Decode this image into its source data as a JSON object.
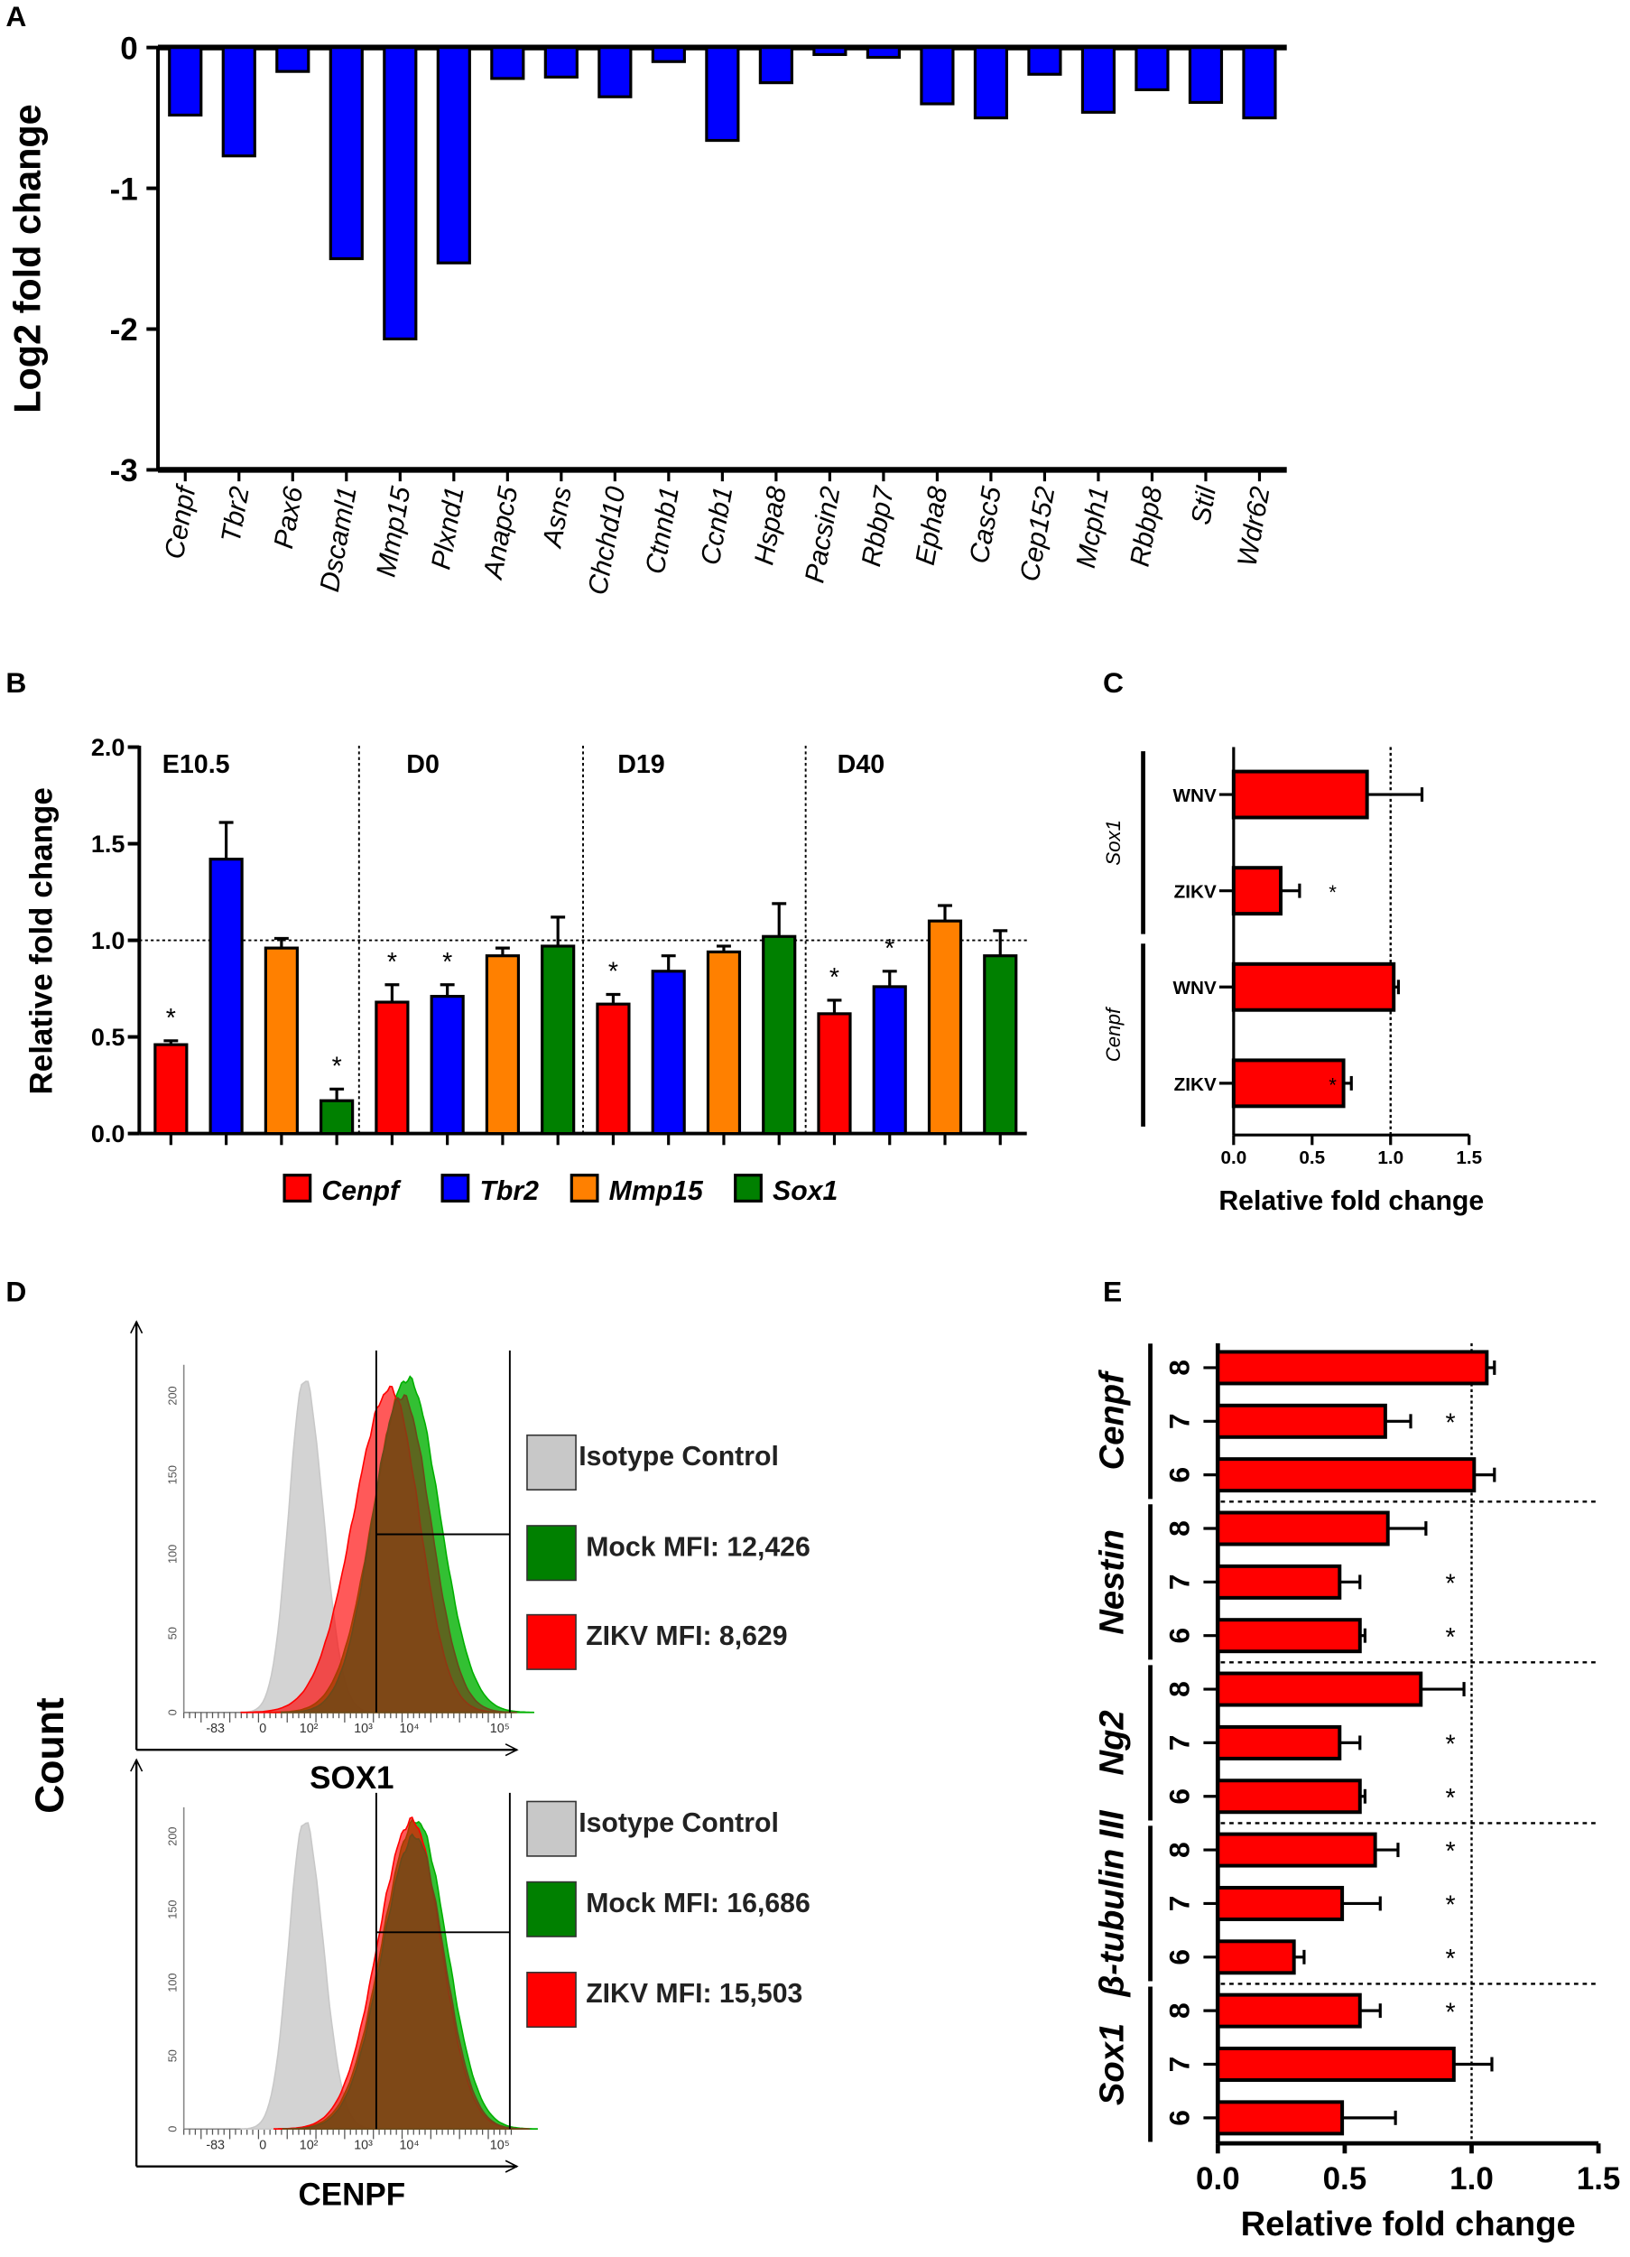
{
  "chart_data": [
    {
      "panel": "A",
      "type": "bar",
      "ylabel": "Log2 fold change",
      "ylim": [
        -3,
        0
      ],
      "yticks": [
        "0",
        "-1",
        "-2",
        "-3"
      ],
      "categories": [
        "Cenpf",
        "Tbr2",
        "Pax6",
        "Dscaml1",
        "Mmp15",
        "Plxnd1",
        "Anapc5",
        "Asns",
        "Chchd10",
        "Ctnnb1",
        "Ccnb1",
        "Hspa8",
        "Pacsin2",
        "Rbbp7",
        "Epha8",
        "Casc5",
        "Cep152",
        "Mcph1",
        "Rbbp8",
        "Stil",
        "Wdr62"
      ],
      "values": [
        -0.48,
        -0.77,
        -0.17,
        -1.5,
        -2.07,
        -1.53,
        -0.22,
        -0.21,
        -0.35,
        -0.1,
        -0.66,
        -0.25,
        -0.05,
        -0.07,
        -0.4,
        -0.5,
        -0.19,
        -0.46,
        -0.3,
        -0.39,
        -0.5
      ],
      "color": "#0000ff"
    },
    {
      "panel": "B",
      "type": "bar",
      "ylabel": "Relative fold change",
      "ylim": [
        0,
        2.0
      ],
      "yticks": [
        "0.0",
        "0.5",
        "1.0",
        "1.5",
        "2.0"
      ],
      "groups": [
        "E10.5",
        "D0",
        "D19",
        "D40"
      ],
      "reference_line": 1.0,
      "series": [
        {
          "name": "Cenpf",
          "color": "#ff0000",
          "values": [
            0.46,
            0.68,
            0.67,
            0.62
          ],
          "errors": [
            0.02,
            0.09,
            0.05,
            0.07
          ],
          "significant": [
            true,
            true,
            true,
            true
          ]
        },
        {
          "name": "Tbr2",
          "color": "#0000ff",
          "values": [
            1.42,
            0.71,
            0.84,
            0.76
          ],
          "errors": [
            0.19,
            0.06,
            0.08,
            0.08
          ],
          "significant": [
            false,
            true,
            false,
            true
          ]
        },
        {
          "name": "Mmp15",
          "color": "#ff8000",
          "values": [
            0.96,
            0.92,
            0.94,
            1.1
          ],
          "errors": [
            0.05,
            0.04,
            0.03,
            0.08
          ],
          "significant": [
            false,
            false,
            false,
            false
          ]
        },
        {
          "name": "Sox1",
          "color": "#008000",
          "values": [
            0.17,
            0.97,
            1.02,
            0.92
          ],
          "errors": [
            0.06,
            0.15,
            0.17,
            0.13
          ],
          "significant": [
            true,
            false,
            false,
            false
          ]
        }
      ],
      "significance_mark": "*"
    },
    {
      "panel": "C",
      "type": "bar",
      "orientation": "horizontal",
      "xlabel": "Relative fold change",
      "xlim": [
        0,
        1.5
      ],
      "xticks": [
        "0.0",
        "0.5",
        "1.0",
        "1.5"
      ],
      "reference_line": 1.0,
      "groups": [
        {
          "name": "Sox1",
          "bars": [
            {
              "label": "WNV",
              "value": 0.85,
              "error": 0.35,
              "sig": false
            },
            {
              "label": "ZIKV",
              "value": 0.3,
              "error": 0.12,
              "sig": true
            }
          ]
        },
        {
          "name": "Cenpf",
          "bars": [
            {
              "label": "WNV",
              "value": 1.02,
              "error": 0.03,
              "sig": false
            },
            {
              "label": "ZIKV",
              "value": 0.7,
              "error": 0.05,
              "sig": true
            }
          ]
        }
      ],
      "color": "#ff0000"
    },
    {
      "panel": "D",
      "type": "histogram",
      "ylabel": "Count",
      "xticks": [
        "-83",
        "0",
        "10²",
        "10³",
        "10⁴",
        "10⁵"
      ],
      "yticks": [
        "0",
        "50",
        "100",
        "150",
        "200"
      ],
      "plots": [
        {
          "xlabel": "SOX1",
          "legend": [
            {
              "label": "Isotype Control",
              "color": "#c8c8c8"
            },
            {
              "label": "Mock MFI: 12,426",
              "color": "#008000"
            },
            {
              "label": "ZIKV  MFI: 8,629",
              "color": "#ff0000"
            }
          ]
        },
        {
          "xlabel": "CENPF",
          "legend": [
            {
              "label": "Isotype Control",
              "color": "#c8c8c8"
            },
            {
              "label": "Mock MFI: 16,686",
              "color": "#008000"
            },
            {
              "label": "ZIKV  MFI: 15,503",
              "color": "#ff0000"
            }
          ]
        }
      ]
    },
    {
      "panel": "E",
      "type": "bar",
      "orientation": "horizontal",
      "xlabel": "Relative fold change",
      "xlim": [
        0,
        1.5
      ],
      "xticks": [
        "0.0",
        "0.5",
        "1.0",
        "1.5"
      ],
      "reference_line": 1.0,
      "groups": [
        {
          "name": "Cenpf",
          "bars": [
            {
              "label": "8",
              "value": 1.06,
              "error": 0.03,
              "sig": false
            },
            {
              "label": "7",
              "value": 0.66,
              "error": 0.1,
              "sig": true
            },
            {
              "label": "6",
              "value": 1.01,
              "error": 0.08,
              "sig": false
            }
          ]
        },
        {
          "name": "Nestin",
          "bars": [
            {
              "label": "8",
              "value": 0.67,
              "error": 0.15,
              "sig": false
            },
            {
              "label": "7",
              "value": 0.48,
              "error": 0.08,
              "sig": true
            },
            {
              "label": "6",
              "value": 0.56,
              "error": 0.02,
              "sig": true
            }
          ]
        },
        {
          "name": "Ng2",
          "bars": [
            {
              "label": "8",
              "value": 0.8,
              "error": 0.17,
              "sig": false
            },
            {
              "label": "7",
              "value": 0.48,
              "error": 0.08,
              "sig": true
            },
            {
              "label": "6",
              "value": 0.56,
              "error": 0.02,
              "sig": true
            }
          ]
        },
        {
          "name": "β-tubulin III",
          "bars": [
            {
              "label": "8",
              "value": 0.62,
              "error": 0.09,
              "sig": true
            },
            {
              "label": "7",
              "value": 0.49,
              "error": 0.15,
              "sig": true
            },
            {
              "label": "6",
              "value": 0.3,
              "error": 0.04,
              "sig": true
            }
          ]
        },
        {
          "name": "Sox1",
          "bars": [
            {
              "label": "8",
              "value": 0.56,
              "error": 0.08,
              "sig": true
            },
            {
              "label": "7",
              "value": 0.93,
              "error": 0.15,
              "sig": false
            },
            {
              "label": "6",
              "value": 0.49,
              "error": 0.21,
              "sig": false
            }
          ]
        }
      ],
      "color": "#ff0000"
    }
  ],
  "panel_labels": [
    "A",
    "B",
    "C",
    "D",
    "E"
  ]
}
